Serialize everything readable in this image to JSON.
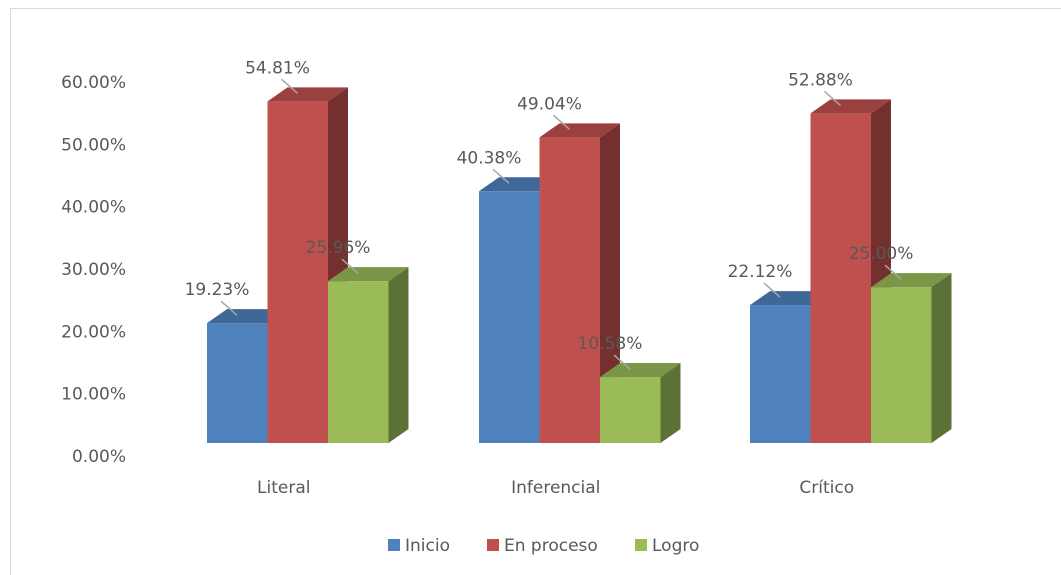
{
  "chart_data": {
    "type": "bar",
    "categories": [
      "Literal",
      "Inferencial",
      "Crítico"
    ],
    "series": [
      {
        "name": "Inicio",
        "color": "#4f81bd",
        "values": [
          19.23,
          40.38,
          22.12
        ],
        "value_labels": [
          "19.23%",
          "40.38%",
          "22.12%"
        ]
      },
      {
        "name": "En proceso",
        "color": "#c0504d",
        "values": [
          54.81,
          49.04,
          52.88
        ],
        "value_labels": [
          "54.81%",
          "49.04%",
          "52.88%"
        ]
      },
      {
        "name": "Logro",
        "color": "#9bbb59",
        "values": [
          25.96,
          10.58,
          25.0
        ],
        "value_labels": [
          "25.96%",
          "10.58%",
          "25.00%"
        ]
      }
    ],
    "ylim": [
      0,
      60
    ],
    "yticks": [
      {
        "value": 0,
        "label": "0.00%"
      },
      {
        "value": 10,
        "label": "10.00%"
      },
      {
        "value": 20,
        "label": "20.00%"
      },
      {
        "value": 30,
        "label": "30.00%"
      },
      {
        "value": 40,
        "label": "40.00%"
      },
      {
        "value": 50,
        "label": "50.00%"
      },
      {
        "value": 60,
        "label": "60.00%"
      }
    ],
    "legend": "bottom",
    "grid": false
  }
}
